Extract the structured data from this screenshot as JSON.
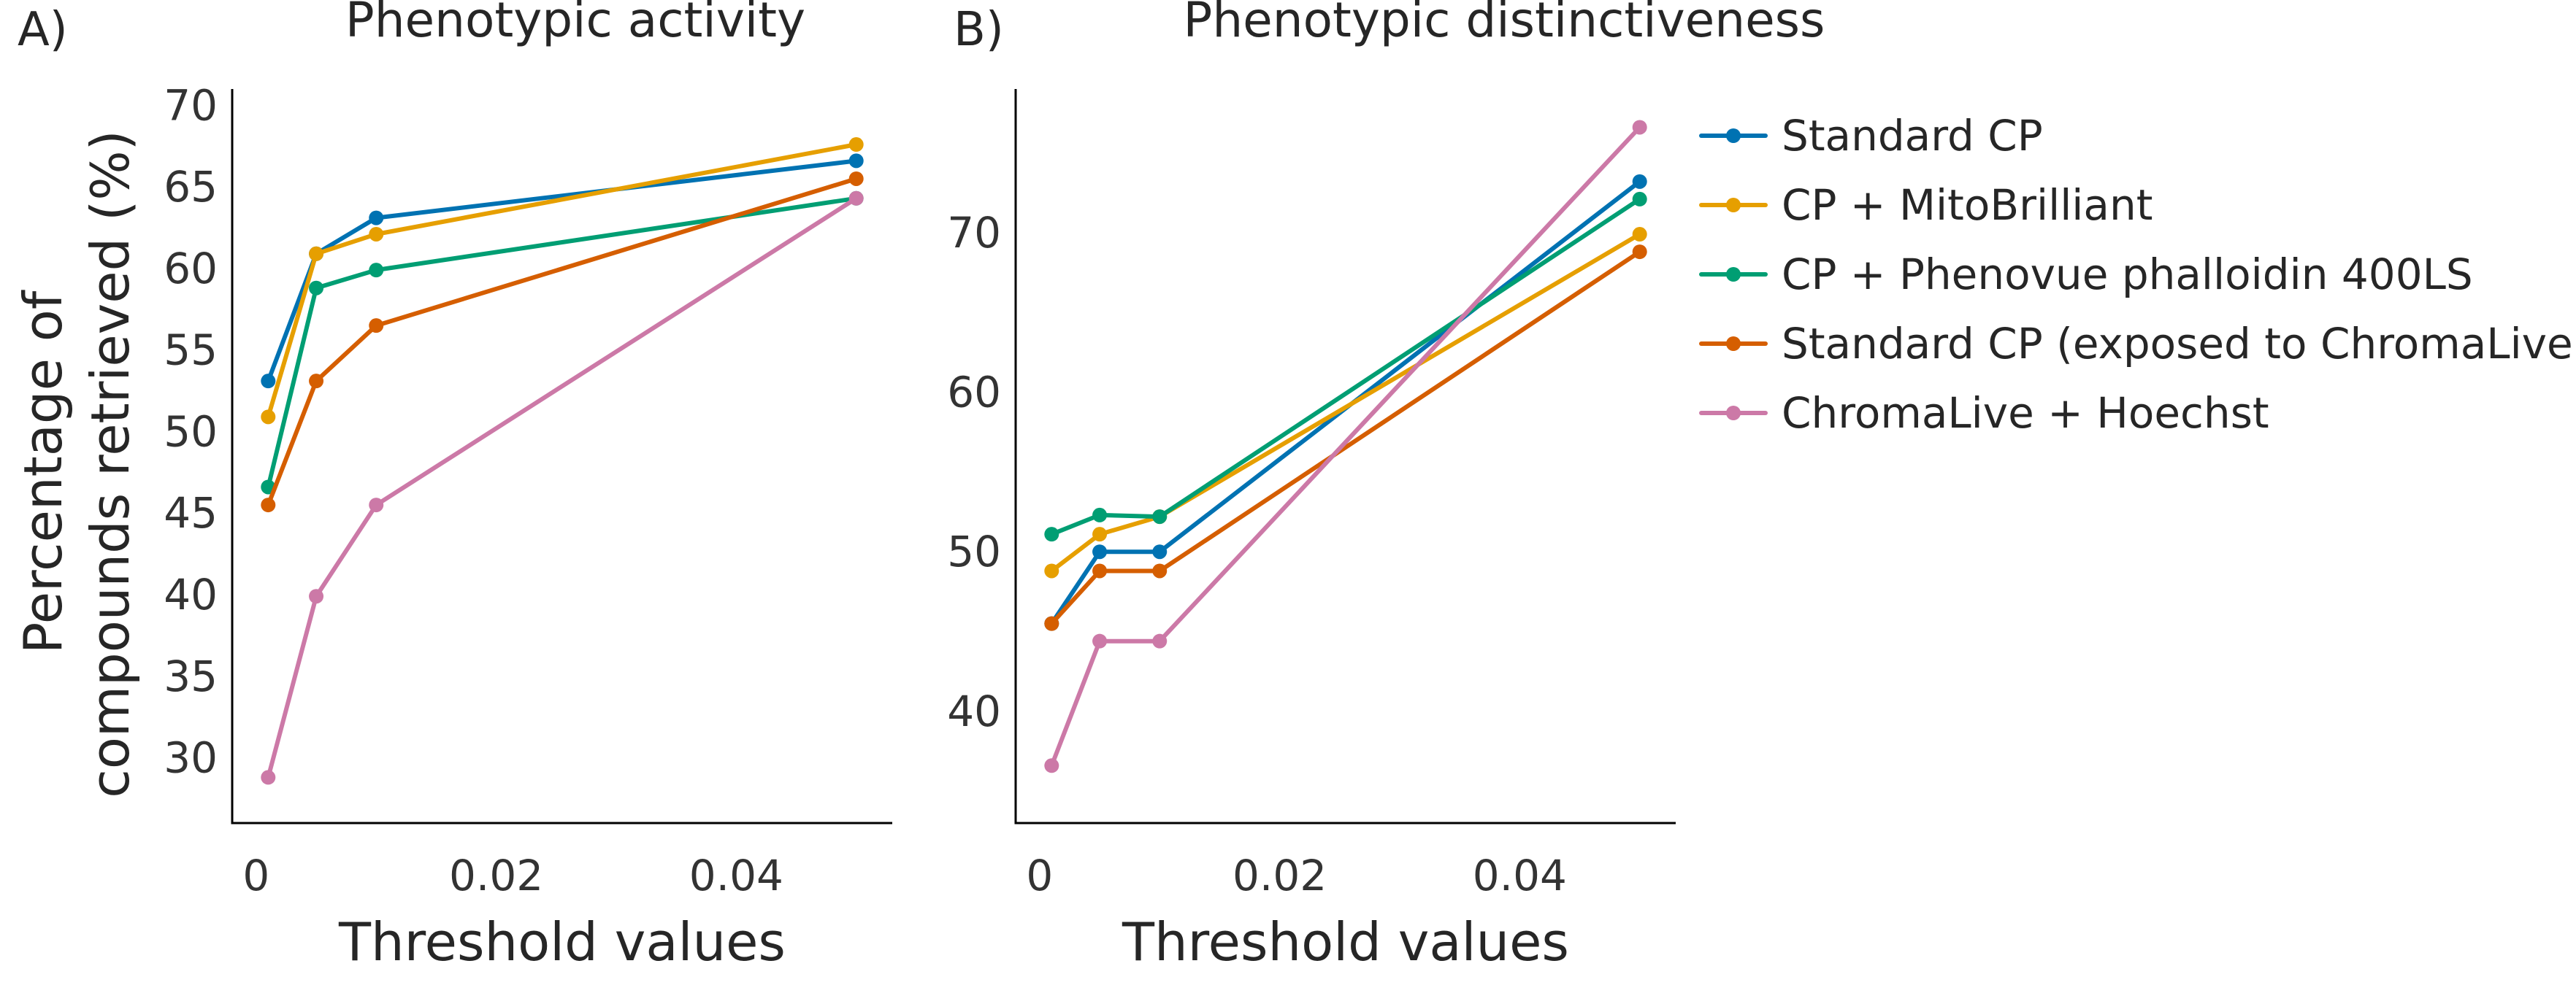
{
  "chart_data": [
    {
      "type": "line",
      "panel_label": "A)",
      "title": "Phenotypic activity",
      "xlabel": "Threshold values",
      "ylabel": [
        "Percentage of",
        "compounds retrieved (%)"
      ],
      "xlim": [
        -0.002,
        0.053
      ],
      "ylim": [
        26,
        71
      ],
      "xticks": [
        0,
        0.02,
        0.04
      ],
      "xtick_labels": [
        "0",
        "0.02",
        "0.04"
      ],
      "yticks": [
        30,
        35,
        40,
        45,
        50,
        55,
        60,
        65,
        70
      ],
      "ytick_labels": [
        "30",
        "35",
        "40",
        "45",
        "50",
        "55",
        "60",
        "65",
        "70"
      ],
      "grid": false,
      "x": [
        0.001,
        0.005,
        0.01,
        0.05
      ],
      "series": [
        {
          "name": "Standard CP",
          "color": "#0072B2",
          "values": [
            53.1,
            60.9,
            63.1,
            66.6
          ]
        },
        {
          "name": "CP + MitoBrilliant",
          "color": "#E69F00",
          "values": [
            50.9,
            60.9,
            62.1,
            67.6
          ]
        },
        {
          "name": "CP + Phenovue phalloidin 400LS",
          "color": "#009E73",
          "values": [
            46.6,
            58.8,
            59.9,
            64.3
          ]
        },
        {
          "name": "Standard CP (exposed to ChromaLive)",
          "color": "#D55E00",
          "values": [
            45.5,
            53.1,
            56.5,
            65.5
          ]
        },
        {
          "name": "ChromaLive + Hoechst",
          "color": "#CC79A7",
          "values": [
            28.8,
            39.9,
            45.5,
            64.3
          ]
        }
      ]
    },
    {
      "type": "line",
      "panel_label": "B)",
      "title": "Phenotypic distinctiveness",
      "xlabel": "Threshold values",
      "ylabel": [],
      "xlim": [
        -0.002,
        0.053
      ],
      "ylim": [
        33,
        79
      ],
      "xticks": [
        0,
        0.02,
        0.04
      ],
      "xtick_labels": [
        "0",
        "0.02",
        "0.04"
      ],
      "yticks": [
        40,
        50,
        60,
        70
      ],
      "ytick_labels": [
        "40",
        "50",
        "60",
        "70"
      ],
      "grid": false,
      "x": [
        0.001,
        0.005,
        0.01,
        0.05
      ],
      "series": [
        {
          "name": "Standard CP",
          "color": "#0072B2",
          "values": [
            45.5,
            50.0,
            50.0,
            73.2
          ]
        },
        {
          "name": "CP + MitoBrilliant",
          "color": "#E69F00",
          "values": [
            48.8,
            51.1,
            52.2,
            69.9
          ]
        },
        {
          "name": "CP + Phenovue phalloidin 400LS",
          "color": "#009E73",
          "values": [
            51.1,
            52.3,
            52.2,
            72.1
          ]
        },
        {
          "name": "Standard CP (exposed to ChromaLive)",
          "color": "#D55E00",
          "values": [
            45.5,
            48.8,
            48.8,
            68.8
          ]
        },
        {
          "name": "ChromaLive + Hoechst",
          "color": "#CC79A7",
          "values": [
            36.6,
            44.4,
            44.4,
            76.6
          ]
        }
      ]
    }
  ],
  "legend": {
    "placement": "right",
    "entries": [
      {
        "label": "Standard CP",
        "color": "#0072B2"
      },
      {
        "label": "CP + MitoBrilliant",
        "color": "#E69F00"
      },
      {
        "label": "CP + Phenovue phalloidin 400LS",
        "color": "#009E73"
      },
      {
        "label": "Standard CP (exposed to ChromaLive)",
        "color": "#D55E00"
      },
      {
        "label": "ChromaLive + Hoechst",
        "color": "#CC79A7"
      }
    ]
  }
}
